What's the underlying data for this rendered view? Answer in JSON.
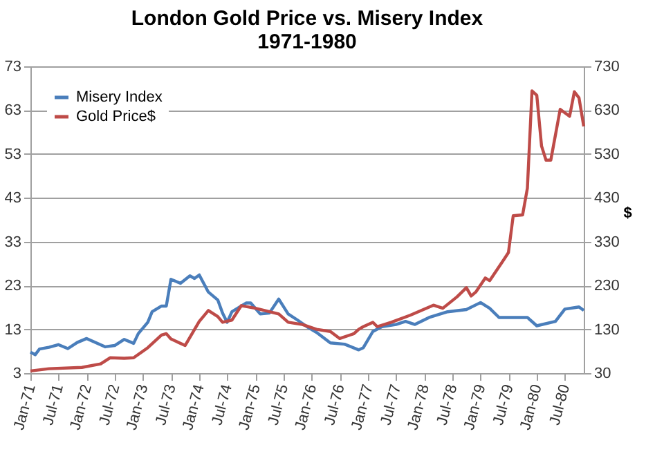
{
  "chart_data": {
    "type": "line",
    "title": "London Gold Price vs. Misery Index",
    "subtitle": "1971-1980",
    "y2label": "$",
    "xlim": [
      "1971-01",
      "1980-11"
    ],
    "xticks": [
      {
        "value": "1971-01",
        "label": "Jan-71"
      },
      {
        "value": "1971-07",
        "label": "Jul-71"
      },
      {
        "value": "1972-01",
        "label": "Jan-72"
      },
      {
        "value": "1972-07",
        "label": "Jul-72"
      },
      {
        "value": "1973-01",
        "label": "Jan-73"
      },
      {
        "value": "1973-07",
        "label": "Jul-73"
      },
      {
        "value": "1974-01",
        "label": "Jan-74"
      },
      {
        "value": "1974-07",
        "label": "Jul-74"
      },
      {
        "value": "1975-01",
        "label": "Jan-75"
      },
      {
        "value": "1975-07",
        "label": "Jul-75"
      },
      {
        "value": "1976-01",
        "label": "Jan-76"
      },
      {
        "value": "1976-07",
        "label": "Jul-76"
      },
      {
        "value": "1977-01",
        "label": "Jan-77"
      },
      {
        "value": "1977-07",
        "label": "Jul-77"
      },
      {
        "value": "1978-01",
        "label": "Jan-78"
      },
      {
        "value": "1978-07",
        "label": "Jul-78"
      },
      {
        "value": "1979-01",
        "label": "Jan-79"
      },
      {
        "value": "1979-07",
        "label": "Jul-79"
      },
      {
        "value": "1980-01",
        "label": "Jan-80"
      },
      {
        "value": "1980-07",
        "label": "Jul-80"
      }
    ],
    "ylim": [
      3,
      73
    ],
    "yticks": [
      3,
      13,
      23,
      33,
      43,
      53,
      63,
      73
    ],
    "y2lim": [
      30,
      730
    ],
    "y2ticks": [
      30,
      130,
      230,
      330,
      430,
      530,
      630,
      730
    ],
    "grid": "y",
    "legend": "top left",
    "line_style": "solid",
    "marker": "none",
    "series": [
      {
        "name": "Misery Index",
        "color": "#4a7ebb",
        "x": [
          "1971-01",
          "1971-02",
          "1971-03",
          "1971-05",
          "1971-07",
          "1971-09",
          "1971-11",
          "1972-01",
          "1972-05",
          "1972-07",
          "1972-09",
          "1972-11",
          "1972-12",
          "1973-02",
          "1973-03",
          "1973-05",
          "1973-06",
          "1973-07",
          "1973-09",
          "1973-11",
          "1973-12",
          "1974-01",
          "1974-03",
          "1974-05",
          "1974-06",
          "1974-07",
          "1974-08",
          "1974-11",
          "1974-12",
          "1975-02",
          "1975-04",
          "1975-06",
          "1975-08",
          "1975-10",
          "1975-12",
          "1976-02",
          "1976-05",
          "1976-08",
          "1976-11",
          "1976-12",
          "1977-02",
          "1977-04",
          "1977-07",
          "1977-09",
          "1977-11",
          "1978-02",
          "1978-06",
          "1978-10",
          "1979-01",
          "1979-03",
          "1979-05",
          "1979-09",
          "1979-11",
          "1980-01",
          "1980-05",
          "1980-07",
          "1980-10",
          "1980-11"
        ],
        "values": [
          7.8,
          7.2,
          8.5,
          8.9,
          9.5,
          8.6,
          10,
          10.9,
          9,
          9.3,
          10.7,
          9.8,
          12,
          14.6,
          17,
          18.3,
          18.3,
          24.4,
          23.5,
          25.2,
          24.6,
          25.4,
          21.5,
          19.7,
          16.7,
          14.6,
          17,
          19,
          19,
          16.5,
          16.7,
          19.9,
          16.5,
          15.1,
          13.6,
          12.3,
          9.9,
          9.6,
          8.3,
          8.8,
          12.5,
          13.6,
          14.1,
          14.8,
          14.1,
          15.7,
          17,
          17.5,
          19.1,
          17.8,
          15.7,
          15.7,
          15.7,
          13.8,
          14.8,
          17.6,
          18.1,
          17.3
        ]
      },
      {
        "name": "Gold Price$",
        "color": "#be4b48",
        "axis": "y2",
        "x": [
          "1971-01",
          "1971-05",
          "1971-12",
          "1972-04",
          "1972-06",
          "1972-09",
          "1972-11",
          "1973-02",
          "1973-05",
          "1973-06",
          "1973-07",
          "1973-10",
          "1974-01",
          "1974-03",
          "1974-05",
          "1974-06",
          "1974-08",
          "1974-10",
          "1975-01",
          "1975-03",
          "1975-06",
          "1975-08",
          "1975-11",
          "1976-02",
          "1976-05",
          "1976-07",
          "1976-10",
          "1976-11",
          "1976-12",
          "1977-02",
          "1977-03",
          "1977-06",
          "1977-10",
          "1978-03",
          "1978-05",
          "1978-08",
          "1978-10",
          "1978-11",
          "1978-12",
          "1979-02",
          "1979-03",
          "1979-06",
          "1979-07",
          "1979-08",
          "1979-10",
          "1979-11",
          "1979-12",
          "1980-01",
          "1980-02",
          "1980-03",
          "1980-04",
          "1980-06",
          "1980-08",
          "1980-09",
          "1980-10",
          "1980-11"
        ],
        "values": [
          35,
          40,
          43,
          51,
          65,
          64,
          65,
          88,
          117,
          120,
          108,
          93,
          148,
          173,
          159,
          146,
          151,
          184,
          178,
          173,
          165,
          146,
          141,
          130,
          125,
          109,
          120,
          130,
          136,
          146,
          136,
          146,
          162,
          185,
          178,
          204,
          225,
          206,
          215,
          247,
          241,
          289,
          305,
          389,
          391,
          452,
          674,
          664,
          548,
          516,
          516,
          632,
          616,
          672,
          658,
          593
        ]
      }
    ]
  }
}
